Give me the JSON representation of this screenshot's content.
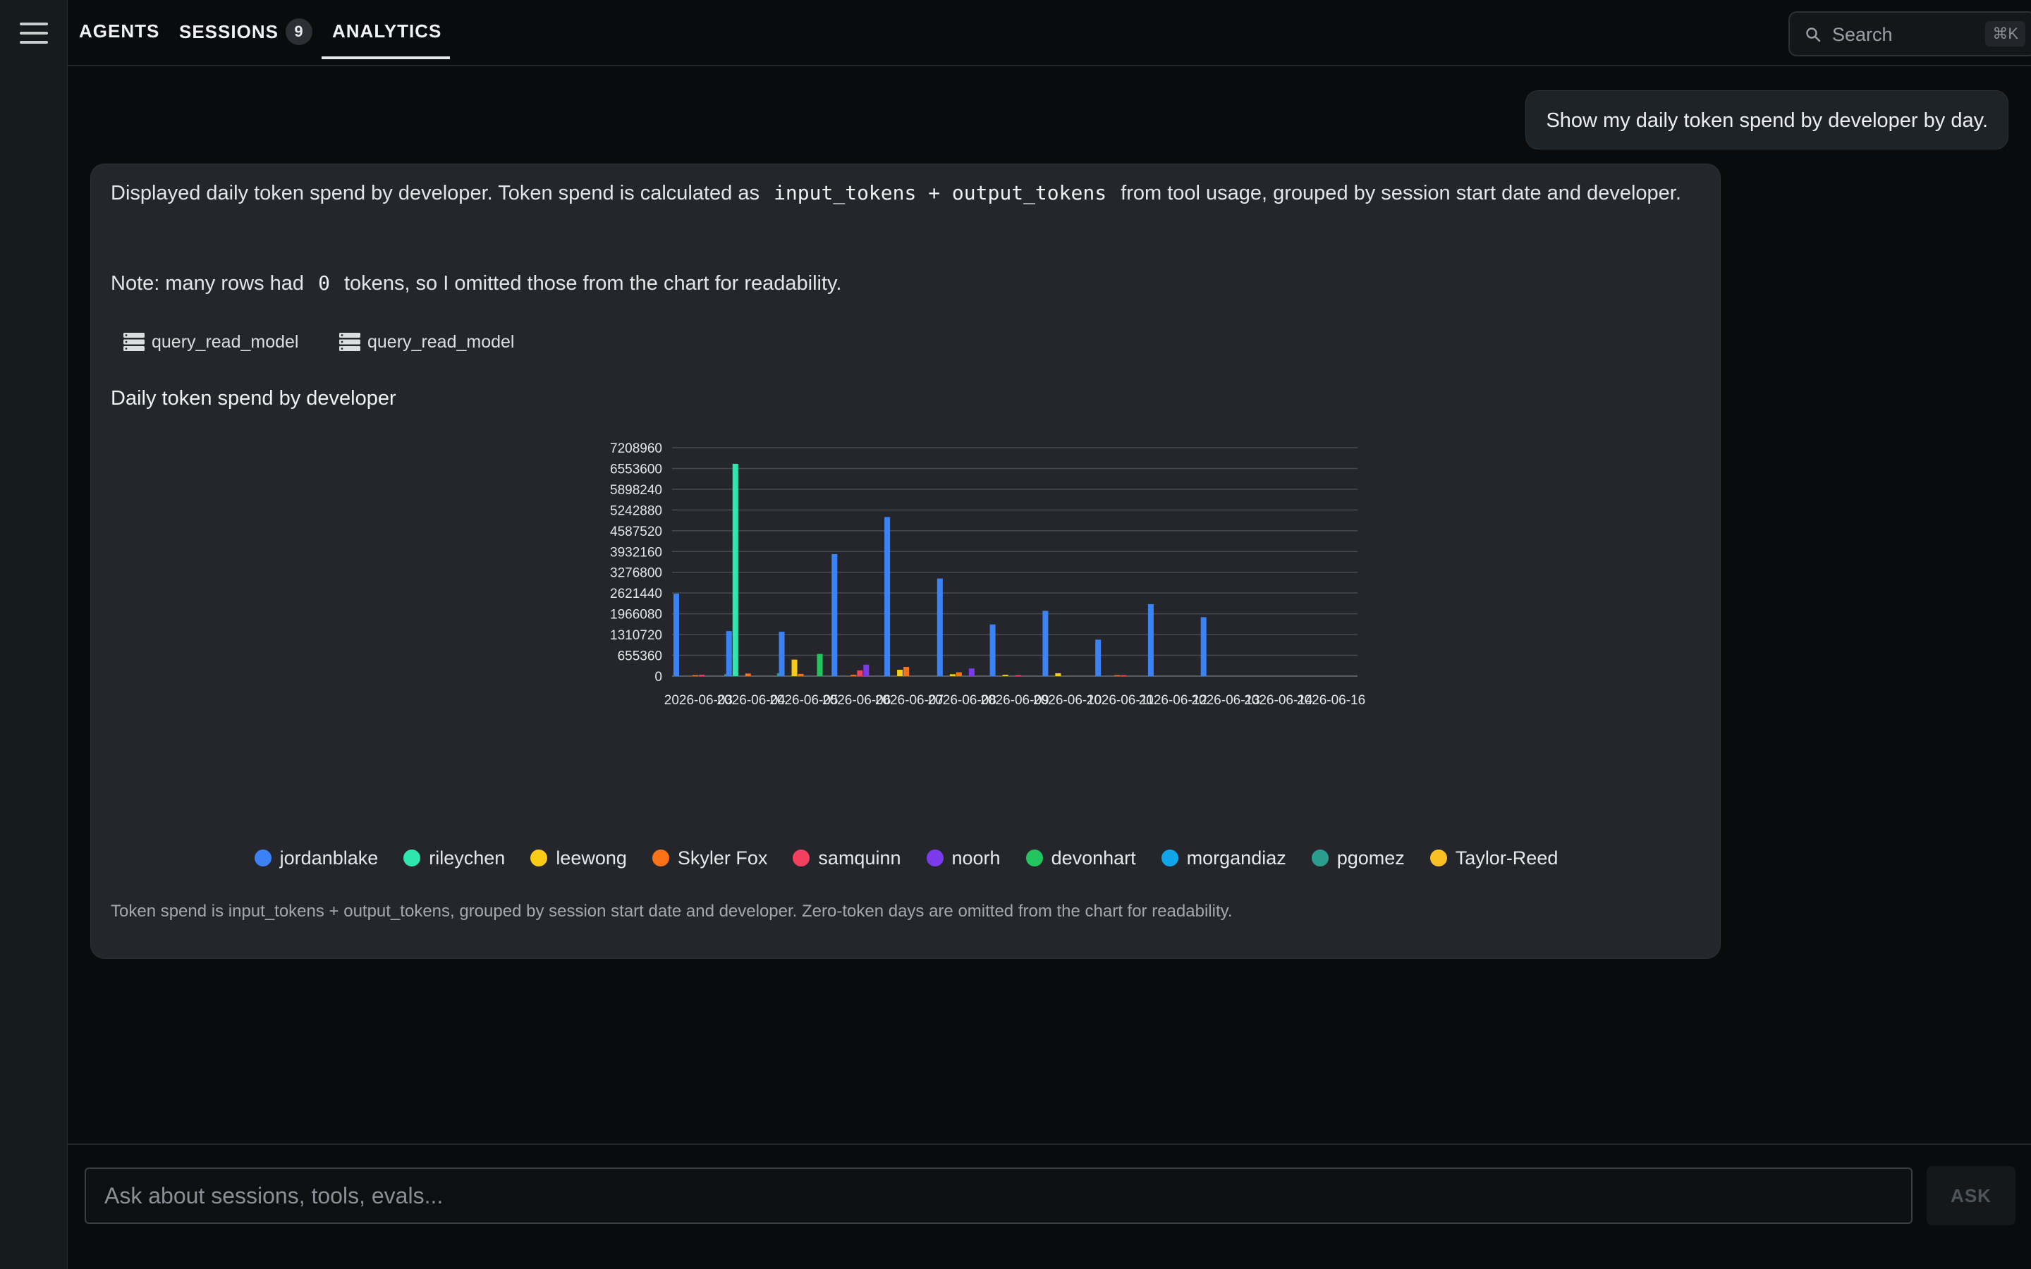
{
  "nav": {
    "tabs": [
      {
        "label": "AGENTS"
      },
      {
        "label": "SESSIONS",
        "badge": "9"
      },
      {
        "label": "ANALYTICS",
        "active": true
      }
    ]
  },
  "search": {
    "placeholder": "Search",
    "shortcut": "⌘K"
  },
  "conversation": {
    "user_message": "Show my daily token spend by developer by day.",
    "assistant": {
      "intro_before": "Displayed daily token spend by developer. Token spend is calculated as",
      "intro_code": "input_tokens + output_tokens",
      "intro_after": "from tool usage, grouped by session start date and developer.",
      "note_before": "Note: many rows had",
      "note_code": "0",
      "note_after": "tokens, so I omitted those from the chart for readability.",
      "tool_calls": [
        "query_read_model",
        "query_read_model"
      ],
      "chart_title": "Daily token spend by developer",
      "footnote": "Token spend is input_tokens + output_tokens, grouped by session start date and developer. Zero-token days are omitted from the chart for readability."
    }
  },
  "chart_data": {
    "type": "bar",
    "title": "Daily token spend by developer",
    "xlabel": "",
    "ylabel": "",
    "ylim": [
      0,
      7208960
    ],
    "yticks": [
      0,
      655360,
      1310720,
      1966080,
      2621440,
      3276800,
      3932160,
      4587520,
      5242880,
      5898240,
      6553600,
      7208960
    ],
    "categories": [
      "2026-06-03",
      "2026-06-04",
      "2026-06-05",
      "2026-06-06",
      "2026-06-07",
      "2026-06-08",
      "2026-06-09",
      "2026-06-10",
      "2026-06-11",
      "2026-06-12",
      "2026-06-13",
      "2026-06-14",
      "2026-06-16"
    ],
    "series": [
      {
        "name": "jordanblake",
        "color": "#3b82f6",
        "values": [
          2600000,
          1420000,
          1400000,
          3850000,
          5020000,
          3080000,
          1630000,
          2060000,
          1150000,
          2270000,
          1860000,
          0,
          0
        ]
      },
      {
        "name": "rileychen",
        "color": "#2ee6b0",
        "values": [
          0,
          6700000,
          0,
          0,
          0,
          0,
          0,
          0,
          0,
          0,
          0,
          0,
          0
        ]
      },
      {
        "name": "leewong",
        "color": "#facc15",
        "values": [
          0,
          0,
          520000,
          0,
          200000,
          60000,
          40000,
          90000,
          0,
          0,
          0,
          0,
          0
        ]
      },
      {
        "name": "Skyler Fox",
        "color": "#f97316",
        "values": [
          30000,
          80000,
          70000,
          40000,
          290000,
          120000,
          0,
          0,
          30000,
          0,
          0,
          0,
          0
        ]
      },
      {
        "name": "samquinn",
        "color": "#f43f5e",
        "values": [
          40000,
          0,
          0,
          180000,
          0,
          0,
          30000,
          0,
          30000,
          0,
          0,
          0,
          0
        ]
      },
      {
        "name": "noorh",
        "color": "#7c3aed",
        "values": [
          0,
          0,
          0,
          360000,
          0,
          240000,
          0,
          0,
          0,
          0,
          0,
          0,
          0
        ]
      },
      {
        "name": "devonhart",
        "color": "#22c55e",
        "values": [
          0,
          0,
          700000,
          0,
          0,
          0,
          0,
          0,
          0,
          0,
          0,
          0,
          0
        ]
      },
      {
        "name": "morgandiaz",
        "color": "#0ea5e9",
        "values": [
          0,
          0,
          0,
          0,
          0,
          0,
          0,
          0,
          0,
          0,
          0,
          0,
          0
        ]
      },
      {
        "name": "pgomez",
        "color": "#2a9d8f",
        "values": [
          60000,
          90000,
          0,
          0,
          0,
          0,
          0,
          0,
          0,
          0,
          0,
          0,
          0
        ]
      },
      {
        "name": "Taylor-Reed",
        "color": "#fbbf24",
        "values": [
          0,
          0,
          0,
          0,
          0,
          0,
          0,
          0,
          0,
          0,
          0,
          0,
          0
        ]
      }
    ],
    "grid": true,
    "legend": "bottom"
  },
  "composer": {
    "placeholder": "Ask about sessions, tools, evals...",
    "button": "ASK"
  }
}
